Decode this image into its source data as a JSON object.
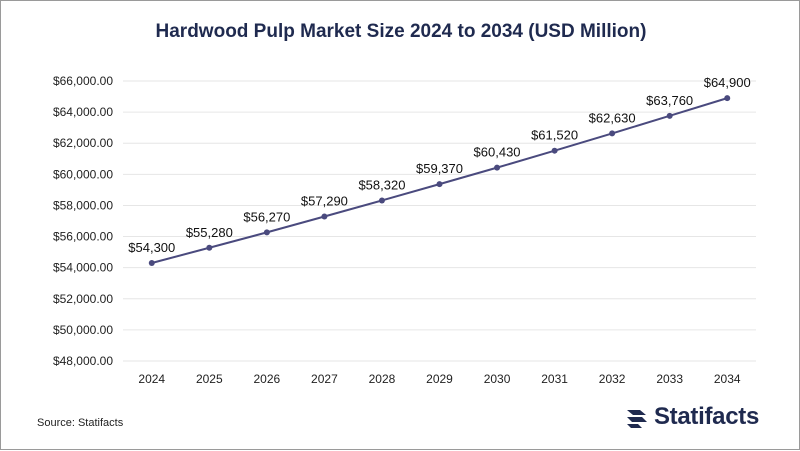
{
  "title": "Hardwood Pulp Market Size 2024 to 2034 (USD Million)",
  "source": "Source: Statifacts",
  "brand": {
    "name": "Statifacts",
    "logo_icon": "statifacts-logo-icon"
  },
  "colors": {
    "line": "#4a4a7e",
    "grid": "#e6e6e6",
    "title": "#1f2a4f"
  },
  "chart_data": {
    "type": "line",
    "x": [
      "2024",
      "2025",
      "2026",
      "2027",
      "2028",
      "2029",
      "2030",
      "2031",
      "2032",
      "2033",
      "2034"
    ],
    "values": [
      54300,
      55280,
      56270,
      57290,
      58320,
      59370,
      60430,
      61520,
      62630,
      63760,
      64900
    ],
    "data_labels": [
      "$54,300",
      "$55,280",
      "$56,270",
      "$57,290",
      "$58,320",
      "$59,370",
      "$60,430",
      "$61,520",
      "$62,630",
      "$63,760",
      "$64,900"
    ],
    "y_ticks": [
      48000,
      50000,
      52000,
      54000,
      56000,
      58000,
      60000,
      62000,
      64000,
      66000
    ],
    "y_tick_labels": [
      "$48,000.00",
      "$50,000.00",
      "$52,000.00",
      "$54,000.00",
      "$56,000.00",
      "$58,000.00",
      "$60,000.00",
      "$62,000.00",
      "$64,000.00",
      "$66,000.00"
    ],
    "ylim": [
      48000,
      66000
    ],
    "grid": true,
    "legend": "none"
  }
}
